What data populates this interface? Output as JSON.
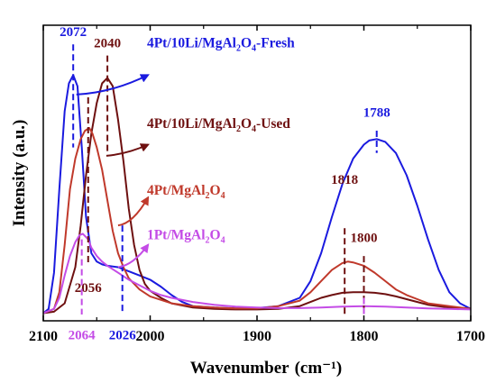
{
  "chart_data": {
    "type": "line",
    "title": "",
    "xlabel": "Wavenumber",
    "xlabel_unit": "(cm⁻¹)",
    "ylabel": "Intensity (a.u.)",
    "xlim": [
      2100,
      1700
    ],
    "x_reversed": true,
    "ylim": [
      0,
      100
    ],
    "y_ticks_shown": false,
    "grid": false,
    "x_ticks": [
      2100,
      2000,
      1900,
      1800,
      1700
    ],
    "x_tick_labels": [
      "2100",
      "2000",
      "1900",
      "1800",
      "1700"
    ],
    "series": [
      {
        "name": "4Pt/10Li/MgAl₂O₄-Fresh",
        "color": "#1a1adf",
        "points": [
          [
            2100,
            0.5
          ],
          [
            2095,
            2
          ],
          [
            2090,
            15
          ],
          [
            2085,
            45
          ],
          [
            2080,
            73
          ],
          [
            2076,
            83
          ],
          [
            2072,
            86
          ],
          [
            2068,
            82
          ],
          [
            2064,
            60
          ],
          [
            2060,
            35
          ],
          [
            2055,
            22
          ],
          [
            2050,
            19
          ],
          [
            2045,
            18
          ],
          [
            2040,
            17.5
          ],
          [
            2030,
            17
          ],
          [
            2020,
            15.5
          ],
          [
            2010,
            14
          ],
          [
            2000,
            12.5
          ],
          [
            1990,
            10
          ],
          [
            1980,
            7
          ],
          [
            1970,
            4.5
          ],
          [
            1960,
            3
          ],
          [
            1940,
            2.5
          ],
          [
            1920,
            2.2
          ],
          [
            1900,
            2.3
          ],
          [
            1880,
            3
          ],
          [
            1860,
            6
          ],
          [
            1850,
            12
          ],
          [
            1840,
            22
          ],
          [
            1830,
            35
          ],
          [
            1820,
            47
          ],
          [
            1810,
            56
          ],
          [
            1800,
            61
          ],
          [
            1795,
            62.5
          ],
          [
            1788,
            63
          ],
          [
            1780,
            62
          ],
          [
            1770,
            58
          ],
          [
            1760,
            50
          ],
          [
            1750,
            39
          ],
          [
            1740,
            27
          ],
          [
            1730,
            16
          ],
          [
            1720,
            8
          ],
          [
            1710,
            4
          ],
          [
            1700,
            2
          ]
        ]
      },
      {
        "name": "4Pt/10Li/MgAl₂O₄-Used",
        "color": "#6e1010",
        "points": [
          [
            2100,
            0.5
          ],
          [
            2090,
            1
          ],
          [
            2080,
            4
          ],
          [
            2070,
            17
          ],
          [
            2065,
            32
          ],
          [
            2060,
            50
          ],
          [
            2055,
            65
          ],
          [
            2050,
            76
          ],
          [
            2045,
            83
          ],
          [
            2040,
            85
          ],
          [
            2035,
            82
          ],
          [
            2030,
            70
          ],
          [
            2025,
            55
          ],
          [
            2020,
            38
          ],
          [
            2015,
            25
          ],
          [
            2010,
            16
          ],
          [
            2005,
            11
          ],
          [
            2000,
            8.5
          ],
          [
            1990,
            6
          ],
          [
            1980,
            4
          ],
          [
            1960,
            2.5
          ],
          [
            1940,
            2
          ],
          [
            1920,
            1.8
          ],
          [
            1900,
            1.8
          ],
          [
            1880,
            2
          ],
          [
            1860,
            3
          ],
          [
            1850,
            4.5
          ],
          [
            1840,
            6
          ],
          [
            1830,
            7
          ],
          [
            1820,
            7.8
          ],
          [
            1810,
            8
          ],
          [
            1800,
            8
          ],
          [
            1790,
            7.8
          ],
          [
            1780,
            7.3
          ],
          [
            1770,
            6.5
          ],
          [
            1760,
            5.5
          ],
          [
            1750,
            4.5
          ],
          [
            1740,
            3.5
          ],
          [
            1720,
            2.5
          ],
          [
            1700,
            2
          ]
        ]
      },
      {
        "name": "4Pt/MgAl₂O₄",
        "color": "#c0392b",
        "points": [
          [
            2100,
            0.5
          ],
          [
            2090,
            2
          ],
          [
            2085,
            8
          ],
          [
            2080,
            25
          ],
          [
            2075,
            45
          ],
          [
            2070,
            56
          ],
          [
            2065,
            63
          ],
          [
            2061,
            66
          ],
          [
            2057,
            67
          ],
          [
            2054,
            65
          ],
          [
            2050,
            60
          ],
          [
            2045,
            52
          ],
          [
            2040,
            41
          ],
          [
            2035,
            30
          ],
          [
            2030,
            22
          ],
          [
            2025,
            17
          ],
          [
            2020,
            13
          ],
          [
            2010,
            9
          ],
          [
            2000,
            6.5
          ],
          [
            1980,
            4
          ],
          [
            1960,
            3
          ],
          [
            1940,
            2.5
          ],
          [
            1920,
            2.2
          ],
          [
            1900,
            2.2
          ],
          [
            1880,
            3
          ],
          [
            1860,
            5
          ],
          [
            1850,
            8
          ],
          [
            1840,
            12
          ],
          [
            1830,
            16
          ],
          [
            1820,
            18.5
          ],
          [
            1815,
            19
          ],
          [
            1810,
            18.7
          ],
          [
            1800,
            17.5
          ],
          [
            1790,
            15
          ],
          [
            1780,
            12
          ],
          [
            1770,
            9
          ],
          [
            1760,
            7
          ],
          [
            1750,
            5.5
          ],
          [
            1740,
            4
          ],
          [
            1720,
            3
          ],
          [
            1700,
            2
          ]
        ]
      },
      {
        "name": "1Pt/MgAl₂O₄",
        "color": "#c44ce6",
        "points": [
          [
            2100,
            0.5
          ],
          [
            2090,
            2
          ],
          [
            2085,
            6
          ],
          [
            2080,
            14
          ],
          [
            2075,
            21
          ],
          [
            2070,
            26
          ],
          [
            2066,
            28.5
          ],
          [
            2063,
            29
          ],
          [
            2058,
            27
          ],
          [
            2055,
            24
          ],
          [
            2050,
            21
          ],
          [
            2045,
            19
          ],
          [
            2040,
            17.5
          ],
          [
            2030,
            15
          ],
          [
            2020,
            12.5
          ],
          [
            2010,
            10.5
          ],
          [
            2000,
            8.5
          ],
          [
            1990,
            7
          ],
          [
            1980,
            6
          ],
          [
            1960,
            4.5
          ],
          [
            1940,
            3.5
          ],
          [
            1920,
            2.8
          ],
          [
            1900,
            2.5
          ],
          [
            1880,
            2.3
          ],
          [
            1860,
            2.3
          ],
          [
            1840,
            2.5
          ],
          [
            1820,
            2.8
          ],
          [
            1800,
            3
          ],
          [
            1780,
            2.8
          ],
          [
            1760,
            2.5
          ],
          [
            1740,
            2.2
          ],
          [
            1720,
            2
          ],
          [
            1700,
            1.8
          ]
        ]
      }
    ],
    "legend_labels": [
      {
        "parts": [
          [
            "4Pt/10Li/MgAl",
            false
          ],
          [
            "2",
            true
          ],
          [
            "O",
            false
          ],
          [
            "4",
            true
          ],
          [
            "-Fresh",
            false
          ]
        ],
        "color": "#1a1adf",
        "tx": 2003,
        "ty": 96,
        "ax": [
          2069,
          79
        ],
        "aw": [
          2002,
          86
        ]
      },
      {
        "parts": [
          [
            "4Pt/10Li/MgAl",
            false
          ],
          [
            "2",
            true
          ],
          [
            "O",
            false
          ],
          [
            "4",
            true
          ],
          [
            "-Used",
            false
          ]
        ],
        "color": "#6e1010",
        "tx": 2003,
        "ty": 67,
        "ax": [
          2041,
          57
        ],
        "aw": [
          2002,
          61
        ]
      },
      {
        "parts": [
          [
            "4Pt/MgAl",
            false
          ],
          [
            "2",
            true
          ],
          [
            "O",
            false
          ],
          [
            "4",
            true
          ]
        ],
        "color": "#c0392b",
        "tx": 2003,
        "ty": 43,
        "ax": [
          2030,
          32
        ],
        "aw": [
          2002,
          42
        ]
      },
      {
        "parts": [
          [
            "1Pt/MgAl",
            false
          ],
          [
            "2",
            true
          ],
          [
            "O",
            false
          ],
          [
            "4",
            true
          ]
        ],
        "color": "#c44ce6",
        "tx": 2003,
        "ty": 27,
        "ax": [
          2030,
          17
        ],
        "aw": [
          2002,
          25
        ]
      }
    ],
    "annotations": [
      {
        "text": "2072",
        "x": 2072,
        "color": "#1a1adf",
        "line": [
          97,
          60
        ],
        "label_y": 100,
        "side": "top"
      },
      {
        "text": "2040",
        "x": 2040,
        "color": "#6e1010",
        "line": [
          93,
          58
        ],
        "label_y": 96,
        "side": "top"
      },
      {
        "text": "2056",
        "x": 2058,
        "color": "#6e1010",
        "line": [
          78,
          18
        ],
        "label_y": 12,
        "side": "below"
      },
      {
        "text": "2064",
        "x": 2064,
        "color": "#c44ce6",
        "line": [
          27,
          0
        ],
        "label_y": -5,
        "side": "below"
      },
      {
        "text": "2026",
        "x": 2026,
        "color": "#1a1adf",
        "line": [
          32,
          0
        ],
        "label_y": -5,
        "side": "below"
      },
      {
        "text": "1788",
        "x": 1788,
        "color": "#1a1adf",
        "line": [
          66,
          58
        ],
        "label_y": 71,
        "side": "top"
      },
      {
        "text": "1818",
        "x": 1818,
        "color": "#6e1010",
        "line": [
          31,
          0
        ],
        "label_y": 47,
        "side": "top"
      },
      {
        "text": "1800",
        "x": 1800,
        "color": "#6e1010",
        "line": [
          21,
          0
        ],
        "label_y": 26,
        "side": "top"
      }
    ],
    "purple_marker": {
      "x": 1800,
      "color": "#c44ce6",
      "line": [
        6,
        0
      ]
    }
  }
}
